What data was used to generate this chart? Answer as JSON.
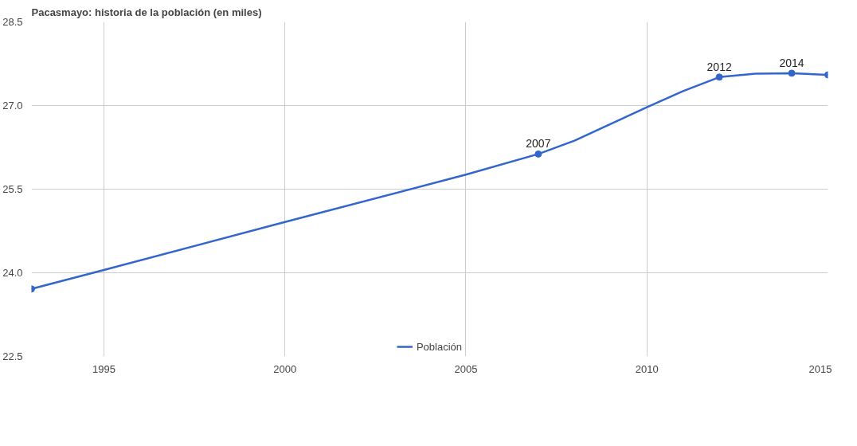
{
  "chart_data": {
    "type": "line",
    "title": "Pacasmayo: historia de la población (en miles)",
    "series": [
      {
        "name": "Población",
        "color": "#3366cc",
        "x": [
          1993,
          1995,
          2000,
          2005,
          2007,
          2008,
          2009,
          2010,
          2011,
          2012,
          2013,
          2014,
          2015
        ],
        "values": [
          23.71,
          24.05,
          24.91,
          25.76,
          26.13,
          26.37,
          26.67,
          26.97,
          27.26,
          27.51,
          27.57,
          27.58,
          27.55
        ]
      },
      {
        "type": "scatter",
        "color": "#3366cc",
        "marker": "circle",
        "x": [
          1993,
          2007,
          2012,
          2014,
          2015
        ],
        "values": [
          23.71,
          26.13,
          27.51,
          27.58,
          27.55
        ]
      }
    ],
    "xlim": [
      1993,
      2015
    ],
    "xticks": [
      1995,
      2000,
      2005,
      2010,
      2015
    ],
    "ylim": [
      22.5,
      28.5
    ],
    "yticks": [
      {
        "value": 22.5,
        "label": "22.5"
      },
      {
        "value": 24,
        "label": "24.0"
      },
      {
        "value": 25.5,
        "label": "25.5"
      },
      {
        "value": 27,
        "label": "27.0"
      },
      {
        "value": 28.5,
        "label": "28.5"
      }
    ],
    "grid": true,
    "legend": "bottom",
    "line_style": "solid",
    "annotations": [
      {
        "text": "2007",
        "x": 2007,
        "y": 26.13
      },
      {
        "text": "2012",
        "x": 2012,
        "y": 27.51
      },
      {
        "text": "2014",
        "x": 2014,
        "y": 27.58
      }
    ]
  }
}
